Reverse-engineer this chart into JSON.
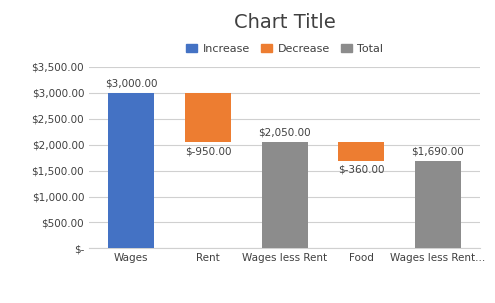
{
  "title": "Chart Title",
  "categories": [
    "Wages",
    "Rent",
    "Wages less Rent",
    "Food",
    "Wages less Rent..."
  ],
  "bar_type": [
    "increase",
    "decrease",
    "total",
    "decrease",
    "total"
  ],
  "bar_values": [
    3000,
    950,
    2050,
    360,
    1690
  ],
  "bar_bottoms": [
    0,
    2050,
    0,
    1690,
    0
  ],
  "bar_labels": [
    "$3,000.00",
    "$-950.00",
    "$2,050.00",
    "$-360.00",
    "$1,690.00"
  ],
  "label_above": [
    true,
    false,
    true,
    false,
    true
  ],
  "colors": {
    "increase": "#4472C4",
    "decrease": "#ED7D31",
    "total": "#8C8C8C"
  },
  "legend_labels": [
    "Increase",
    "Decrease",
    "Total"
  ],
  "legend_colors": [
    "#4472C4",
    "#ED7D31",
    "#8C8C8C"
  ],
  "ylim": [
    0,
    3500
  ],
  "yticks": [
    0,
    500,
    1000,
    1500,
    2000,
    2500,
    3000,
    3500
  ],
  "ytick_labels": [
    "$-",
    "$500.00",
    "$1,000.00",
    "$1,500.00",
    "$2,000.00",
    "$2,500.00",
    "$3,000.00",
    "$3,500.00"
  ],
  "background_color": "#ffffff",
  "plot_bg_color": "#ffffff",
  "grid_color": "#d0d0d0",
  "border_color": "#d0d0d0",
  "title_fontsize": 14,
  "label_fontsize": 7.5,
  "tick_fontsize": 7.5,
  "legend_fontsize": 8,
  "bar_width": 0.6
}
